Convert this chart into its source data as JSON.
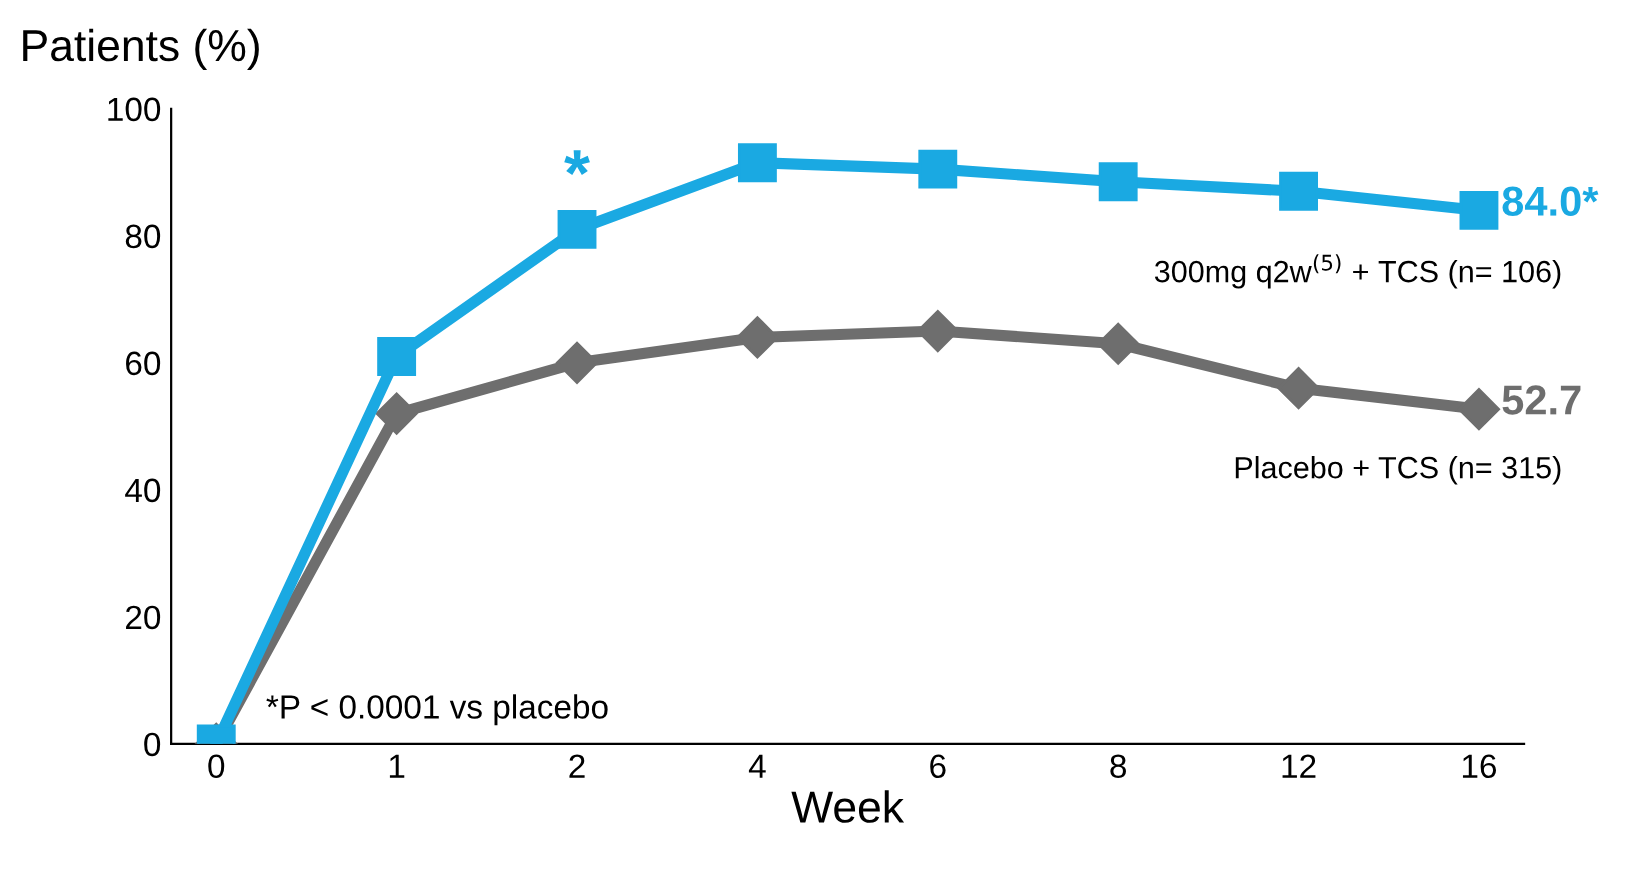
{
  "chart_data": {
    "type": "line",
    "ylabel": "Patients (%)",
    "xlabel": "Week",
    "categories": [
      "0",
      "1",
      "2",
      "4",
      "6",
      "8",
      "12",
      "16"
    ],
    "series": [
      {
        "name": "300mg q2w$^{(5)}$ + TCS (n= 106)",
        "color": "#1aa9e2",
        "marker": "square",
        "values": [
          0,
          61,
          81,
          91.5,
          90.5,
          88.5,
          87,
          84.0
        ],
        "value_labels": [
          null,
          null,
          null,
          null,
          null,
          null,
          null,
          "84.0*"
        ]
      },
      {
        "name": "Placebo + TCS (n= 315)",
        "color": "#6e6e6e",
        "marker": "diamond",
        "values": [
          0,
          52,
          60,
          64,
          65,
          63,
          56,
          52.7
        ],
        "value_labels": [
          null,
          null,
          null,
          null,
          null,
          null,
          null,
          "52.7"
        ]
      }
    ],
    "annotations": [
      {
        "text": "*",
        "x": "2",
        "y": 81
      },
      "*P < 0.0001 vs placebo"
    ],
    "ylim": [
      0,
      100
    ],
    "yticks": [
      0,
      20,
      40,
      60,
      80,
      100
    ],
    "grid": false,
    "legend": false,
    "line_style": "solid"
  }
}
